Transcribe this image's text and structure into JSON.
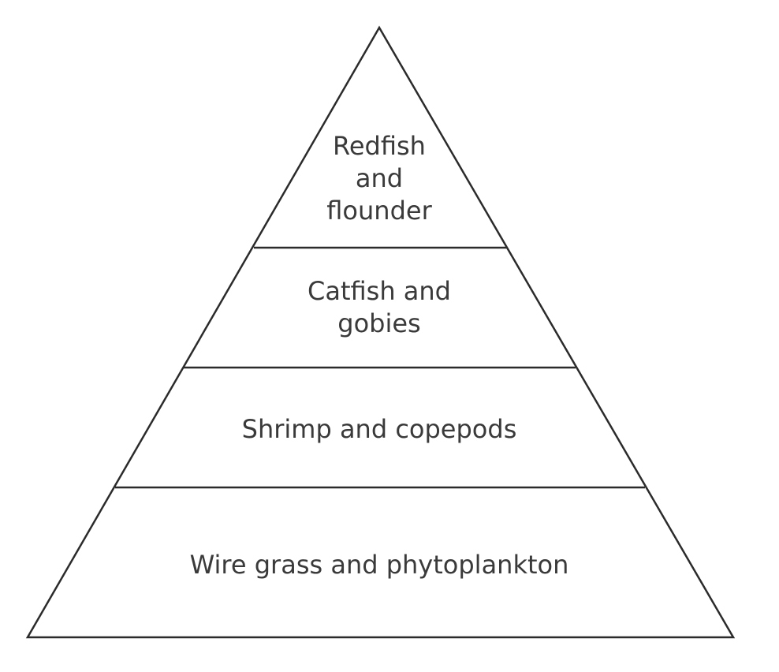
{
  "pyramid": {
    "levels": [
      {
        "lines": [
          "Redfish",
          "and",
          "flounder"
        ]
      },
      {
        "lines": [
          "Catfish and",
          "gobies"
        ]
      },
      {
        "lines": [
          "Shrimp and copepods"
        ]
      },
      {
        "lines": [
          "Wire grass and phytoplankton"
        ]
      }
    ]
  },
  "colors": {
    "outline": "#2b2b2b",
    "text": "#3a3a3a",
    "background": "#ffffff"
  }
}
